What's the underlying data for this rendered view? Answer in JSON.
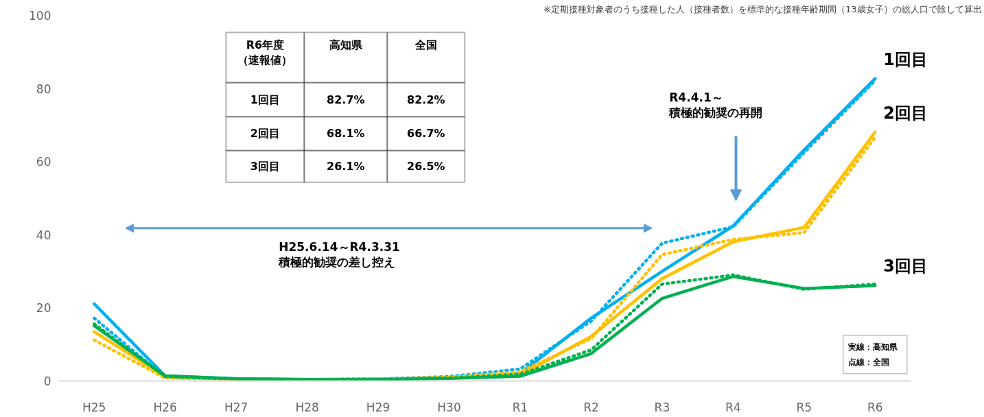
{
  "chart_data": {
    "type": "line",
    "categories": [
      "H25",
      "H26",
      "H27",
      "H28",
      "H29",
      "H30",
      "R1",
      "R2",
      "R3",
      "R4",
      "R5",
      "R6"
    ],
    "ylim": [
      0,
      100
    ],
    "yticks": [
      0,
      20,
      40,
      60,
      80,
      100
    ],
    "grid": false,
    "legend": false,
    "marker": "none",
    "series": [
      {
        "name": "1回目",
        "color": "#00b0f0",
        "line_style": "solid",
        "values": [
          21.1,
          1.4,
          0.6,
          0.4,
          0.5,
          0.9,
          2.0,
          17.2,
          30.0,
          42.4,
          63.2,
          82.7
        ]
      },
      {
        "color": "#00b0f0",
        "line_style": "dotted",
        "values": [
          17.2,
          1.0,
          0.5,
          0.4,
          0.6,
          1.2,
          3.3,
          16.4,
          37.7,
          42.2,
          62.5,
          82.2
        ]
      },
      {
        "name": "2回目",
        "color": "#ffc000",
        "line_style": "solid",
        "values": [
          13.5,
          1.2,
          0.5,
          0.4,
          0.5,
          0.9,
          1.6,
          12.2,
          28.0,
          38.1,
          42.0,
          68.1
        ]
      },
      {
        "color": "#ffc000",
        "line_style": "dotted",
        "values": [
          11.2,
          0.8,
          0.4,
          0.3,
          0.5,
          1.0,
          2.5,
          11.6,
          34.6,
          38.7,
          40.6,
          66.7
        ]
      },
      {
        "name": "3回目",
        "color": "#00b050",
        "line_style": "solid",
        "values": [
          15.1,
          1.4,
          0.6,
          0.4,
          0.4,
          0.7,
          1.3,
          7.5,
          22.6,
          28.6,
          25.3,
          26.1
        ]
      },
      {
        "color": "#00b050",
        "line_style": "dotted",
        "values": [
          15.6,
          1.2,
          0.5,
          0.3,
          0.4,
          0.8,
          1.8,
          8.5,
          26.5,
          29.0,
          25.1,
          26.5
        ]
      }
    ],
    "annotations": [
      "※定期接種対象者のうち接種した人（接種者数）を標準的な接種年齢期間（13歳女子）の総人口で除して算出",
      "H25.6.14～R4.3.31\n積極的勧奨の差し控え",
      "R4.4.1～積極的勧奨の再開",
      "実線：高知県点線：全国",
      "R6年度（速報値）",
      "高知県",
      "全国",
      "1回目",
      "82.7%",
      "82.2%",
      "2回目",
      "68.1%",
      "66.7%",
      "3回目",
      "26.1%",
      "26.5%"
    ]
  }
}
